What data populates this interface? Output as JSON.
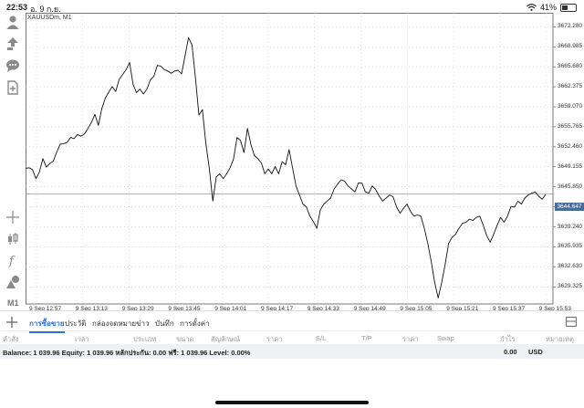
{
  "status_bar": {
    "time": "22:53",
    "date": "อ. 9 ก.ย.",
    "battery": "41%",
    "battery_fraction": 0.41
  },
  "toolbar": {
    "timeframe": "M1"
  },
  "chart": {
    "title": "XAUUSDm, M1",
    "current_price": "3644.647",
    "price_labels": [
      "3672.280",
      "3668.985",
      "3665.680",
      "3662.375",
      "3659.070",
      "3655.765",
      "3652.460",
      "3649.155",
      "3645.850",
      "3642.545",
      "3639.240",
      "3635.935",
      "3632.630",
      "3629.325"
    ],
    "time_labels": [
      "9 Sep 12:57",
      "9 Sep 13:13",
      "9 Sep 13:29",
      "9 Sep 13:45",
      "9 Sep 14:01",
      "9 Sep 14:17",
      "9 Sep 14:33",
      "9 Sep 14:49",
      "9 Sep 15:05",
      "9 Sep 15:21",
      "9 Sep 15:37",
      "9 Sep 15:53"
    ]
  },
  "chart_data": {
    "type": "line",
    "title": "XAUUSDm, M1",
    "xlabel": "",
    "ylabel": "",
    "ylim": [
      3626.5,
      3674.6
    ],
    "grid": true,
    "current_price": 3644.647,
    "series": [
      {
        "values": [
          3648.9,
          3649.0,
          3648.7,
          3647.2,
          3648.3,
          3650.5,
          3649.1,
          3649.7,
          3650.1,
          3651.6,
          3652.9,
          3653.0,
          3653.2,
          3654.0,
          3653.8,
          3654.5,
          3654.2,
          3654.6,
          3655.5,
          3656.5,
          3657.8,
          3656.0,
          3658.8,
          3660.5,
          3661.5,
          3662.4,
          3661.6,
          3663.6,
          3664.4,
          3665.2,
          3666.4,
          3662.8,
          3661.4,
          3662.0,
          3661.2,
          3662.0,
          3663.5,
          3664.1,
          3665.9,
          3665.8,
          3665.2,
          3665.0,
          3664.6,
          3665.0,
          3665.1,
          3664.5,
          3667.5,
          3670.5,
          3669.3,
          3663.8,
          3657.7,
          3658.6,
          3653.0,
          3648.9,
          3643.5,
          3647.5,
          3648.0,
          3647.2,
          3648.0,
          3649.0,
          3650.5,
          3654.0,
          3653.5,
          3651.5,
          3655.5,
          3652.8,
          3651.0,
          3650.5,
          3649.8,
          3648.0,
          3648.8,
          3648.0,
          3649.2,
          3648.0,
          3650.0,
          3649.5,
          3652.0,
          3649.0,
          3646.0,
          3644.5,
          3643.0,
          3642.5,
          3641.0,
          3640.1,
          3639.0,
          3642.0,
          3643.0,
          3643.5,
          3644.0,
          3645.5,
          3646.3,
          3647.0,
          3646.8,
          3646.0,
          3645.5,
          3645.0,
          3646.5,
          3646.5,
          3645.0,
          3644.8,
          3646.0,
          3645.4,
          3644.3,
          3643.5,
          3644.0,
          3644.5,
          3644.2,
          3642.5,
          3641.5,
          3642.3,
          3643.0,
          3641.8,
          3641.0,
          3641.2,
          3641.0,
          3639.0,
          3636.5,
          3633.5,
          3630.0,
          3627.5,
          3630.0,
          3633.0,
          3636.5,
          3637.5,
          3638.0,
          3639.0,
          3639.8,
          3640.0,
          3640.5,
          3640.3,
          3640.8,
          3641.0,
          3639.5,
          3637.8,
          3636.7,
          3638.0,
          3639.5,
          3640.8,
          3640.0,
          3641.0,
          3642.6,
          3642.5,
          3643.5,
          3643.0,
          3644.0,
          3644.5,
          3644.8,
          3645.0,
          3644.3,
          3643.8,
          3644.6
        ]
      }
    ]
  },
  "terminal": {
    "tabs": [
      "การซื้อขาย",
      "ประวัติ",
      "กล่องจดหมาย",
      "ข่าว",
      "บันทึก",
      "การตั้งค่า"
    ],
    "columns": [
      "คำสั่ง",
      "เวลา",
      "ประเภท",
      "ขนาด",
      "สัญลักษณ์",
      "ราคา",
      "S/L",
      "T/P",
      "ราคา",
      "Swap",
      "กำไร",
      "หมายเหตุ"
    ],
    "balance_text": "Balance: 1 039.96 Equity: 1 039.96 หลักประกัน: 0.00 ฟรี: 1 039.96 Level: 0.00%",
    "profit": "0.00",
    "currency": "USD"
  }
}
